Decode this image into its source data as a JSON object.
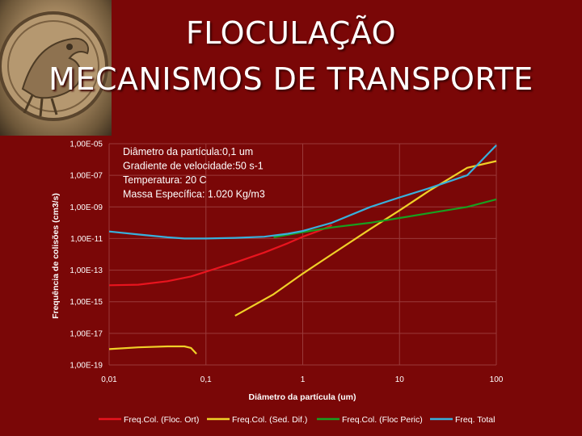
{
  "title": {
    "line1": "FLOCULAÇÃO",
    "line2": "MECANISMOS DE TRANSPORTE"
  },
  "logo": {
    "icon": "medallion-relief-icon"
  },
  "chart_data": {
    "type": "line",
    "x_scale": "log",
    "y_scale": "log",
    "xlabel": "Diâmetro da partícula (um)",
    "ylabel": "Frequência de colisões (cm3/s)",
    "xlim": [
      0.01,
      100
    ],
    "ylim": [
      1e-19,
      1e-05
    ],
    "x_tick_labels": [
      "0,01",
      "0,1",
      "1",
      "10",
      "100"
    ],
    "x_tick_values": [
      0.01,
      0.1,
      1,
      10,
      100
    ],
    "y_tick_labels": [
      "1,00E-05",
      "1,00E-07",
      "1,00E-09",
      "1,00E-11",
      "1,00E-13",
      "1,00E-15",
      "1,00E-17",
      "1,00E-19"
    ],
    "y_tick_values": [
      1e-05,
      1e-07,
      1e-09,
      1e-11,
      1e-13,
      1e-15,
      1e-17,
      1e-19
    ],
    "grid": true,
    "annotations": [
      "Diâmetro da partícula:0,1 um",
      "Gradiente de velocidade:50 s-1",
      "Temperatura: 20 C",
      "Massa Específica: 1.020 Kg/m3"
    ],
    "legend_position": "bottom",
    "series": [
      {
        "name": "Freq.Col. (Floc. Ort)",
        "color": "#e8141e",
        "points": [
          [
            0.01,
            1.1e-14
          ],
          [
            0.02,
            1.2e-14
          ],
          [
            0.04,
            2e-14
          ],
          [
            0.07,
            4e-14
          ],
          [
            0.1,
            8e-14
          ],
          [
            0.2,
            3e-13
          ],
          [
            0.4,
            1.3e-12
          ],
          [
            0.7,
            5e-12
          ],
          [
            1,
            1.3e-11
          ],
          [
            1.5,
            3.2e-11
          ],
          [
            2,
            7e-11
          ]
        ]
      },
      {
        "name": "Freq.Col. (Sed. Dif.)",
        "color": "#f0d028",
        "segments": [
          [
            [
              0.01,
              1e-18
            ],
            [
              0.02,
              1.3e-18
            ],
            [
              0.04,
              1.5e-18
            ],
            [
              0.06,
              1.5e-18
            ],
            [
              0.07,
              1.2e-18
            ],
            [
              0.08,
              5e-19
            ]
          ],
          [
            [
              0.2,
              1.3e-16
            ],
            [
              0.5,
              3e-15
            ],
            [
              1,
              6e-14
            ],
            [
              2,
              1e-12
            ],
            [
              5,
              4e-11
            ],
            [
              10,
              6e-10
            ],
            [
              20,
              1e-08
            ],
            [
              50,
              3e-07
            ],
            [
              100,
              8e-07
            ]
          ]
        ]
      },
      {
        "name": "Freq.Col. (Floc Peric)",
        "color": "#18a020",
        "points": [
          [
            0.5,
            1.2e-11
          ],
          [
            1,
            2.5e-11
          ],
          [
            2,
            5e-11
          ],
          [
            5,
            1e-10
          ],
          [
            10,
            2e-10
          ],
          [
            20,
            4e-10
          ],
          [
            50,
            1e-09
          ],
          [
            100,
            3e-09
          ]
        ]
      },
      {
        "name": "Freq. Total",
        "color": "#38b0dc",
        "points": [
          [
            0.01,
            2.8e-11
          ],
          [
            0.02,
            1.8e-11
          ],
          [
            0.04,
            1.2e-11
          ],
          [
            0.06,
            1e-11
          ],
          [
            0.1,
            1e-11
          ],
          [
            0.2,
            1.1e-11
          ],
          [
            0.4,
            1.3e-11
          ],
          [
            0.7,
            2e-11
          ],
          [
            1,
            3e-11
          ],
          [
            2,
            1e-10
          ],
          [
            5,
            1e-09
          ],
          [
            10,
            4e-09
          ],
          [
            20,
            1.5e-08
          ],
          [
            50,
            1e-07
          ],
          [
            100,
            8e-06
          ]
        ]
      }
    ]
  }
}
